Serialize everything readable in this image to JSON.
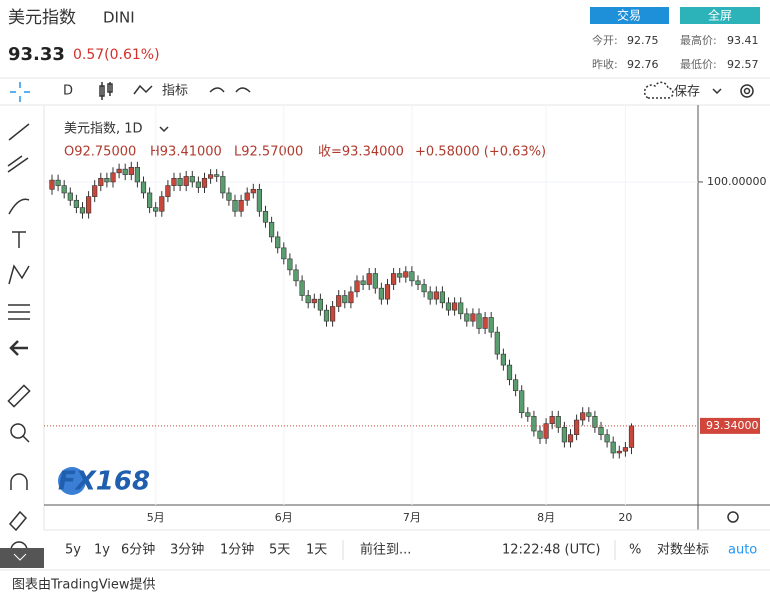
{
  "header": {
    "title": "美元指数",
    "symbol": "DINI",
    "price": "93.33",
    "change": "0.57(0.61%)",
    "buttons": [
      "交易",
      "全屏"
    ],
    "stats": [
      {
        "label": "今开:",
        "value": "92.75"
      },
      {
        "label": "最高价:",
        "value": "93.41"
      },
      {
        "label": "昨收:",
        "value": "92.76"
      },
      {
        "label": "最低价:",
        "value": "92.57"
      }
    ]
  },
  "toolbar": {
    "interval": "D",
    "indicators": "指标",
    "save": "保存"
  },
  "chart_data": {
    "type": "candlestick",
    "title": "美元指数, 1D",
    "ohlc_labels": [
      "O92.75000",
      "H93.41000",
      "L92.57000",
      "收=93.34000",
      "+0.58000 (+0.63%)"
    ],
    "up_color": "#c8473b",
    "down_color": "#5a9e6f",
    "open": [
      99.8,
      100.05,
      99.9,
      99.7,
      99.5,
      99.3,
      99.15,
      99.6,
      99.9,
      100.1,
      100.0,
      100.25,
      100.35,
      100.2,
      100.4,
      100.0,
      99.7,
      99.3,
      99.2,
      99.6,
      99.9,
      100.1,
      99.9,
      100.15,
      100.0,
      99.85,
      100.1,
      100.2,
      100.15,
      99.7,
      99.5,
      99.2,
      99.5,
      99.7,
      99.8,
      99.2,
      98.9,
      98.5,
      98.2,
      97.9,
      97.6,
      97.3,
      96.9,
      96.7,
      96.8,
      96.5,
      96.2,
      96.6,
      96.9,
      96.7,
      97.0,
      97.3,
      97.2,
      97.5,
      97.1,
      96.8,
      97.2,
      97.5,
      97.4,
      97.55,
      97.3,
      97.2,
      97.0,
      96.8,
      97.0,
      96.7,
      96.5,
      96.7,
      96.4,
      96.2,
      96.4,
      96.0,
      96.3,
      95.9,
      95.3,
      95.0,
      94.6,
      94.3,
      93.7,
      93.6,
      93.2,
      93.0,
      93.4,
      93.6,
      93.3,
      92.9,
      93.1,
      93.5,
      93.7,
      93.6,
      93.3,
      93.1,
      92.9,
      92.6,
      92.65,
      92.75
    ],
    "high": [
      100.2,
      100.2,
      100.05,
      99.85,
      99.65,
      99.45,
      99.75,
      100.05,
      100.25,
      100.25,
      100.4,
      100.5,
      100.5,
      100.55,
      100.55,
      100.15,
      99.85,
      99.45,
      99.75,
      100.05,
      100.25,
      100.25,
      100.3,
      100.3,
      100.15,
      100.25,
      100.35,
      100.35,
      100.3,
      99.85,
      99.65,
      99.65,
      99.85,
      99.95,
      99.95,
      99.35,
      99.05,
      98.65,
      98.35,
      98.05,
      97.75,
      97.45,
      97.05,
      96.95,
      96.95,
      96.65,
      96.75,
      97.05,
      97.05,
      97.15,
      97.45,
      97.45,
      97.65,
      97.65,
      97.25,
      97.35,
      97.65,
      97.65,
      97.7,
      97.7,
      97.45,
      97.35,
      97.15,
      97.15,
      97.15,
      96.85,
      96.85,
      96.85,
      96.55,
      96.55,
      96.55,
      96.45,
      96.45,
      96.05,
      95.45,
      95.15,
      94.75,
      94.45,
      93.85,
      93.75,
      93.35,
      93.55,
      93.75,
      93.75,
      93.45,
      93.25,
      93.65,
      93.85,
      93.85,
      93.75,
      93.45,
      93.25,
      93.05,
      92.8,
      92.9,
      93.41
    ],
    "low": [
      99.65,
      99.75,
      99.55,
      99.35,
      99.15,
      99.0,
      99.0,
      99.45,
      99.75,
      99.85,
      99.85,
      100.1,
      100.05,
      100.05,
      99.85,
      99.55,
      99.15,
      99.05,
      99.05,
      99.45,
      99.75,
      99.75,
      99.75,
      99.85,
      99.7,
      99.7,
      99.95,
      100.0,
      99.55,
      99.35,
      99.05,
      99.05,
      99.35,
      99.55,
      99.05,
      98.75,
      98.35,
      98.05,
      97.75,
      97.45,
      97.15,
      96.75,
      96.55,
      96.55,
      96.35,
      96.05,
      96.05,
      96.45,
      96.55,
      96.55,
      96.85,
      97.05,
      97.05,
      96.95,
      96.65,
      96.65,
      97.05,
      97.25,
      97.25,
      97.15,
      97.05,
      96.85,
      96.65,
      96.65,
      96.55,
      96.35,
      96.35,
      96.25,
      96.05,
      96.05,
      95.85,
      95.85,
      95.75,
      95.15,
      94.85,
      94.45,
      94.15,
      93.55,
      93.45,
      93.05,
      92.85,
      92.85,
      93.25,
      93.15,
      92.75,
      92.75,
      92.95,
      93.35,
      93.45,
      93.15,
      92.95,
      92.75,
      92.45,
      92.45,
      92.5,
      92.57
    ],
    "close": [
      100.05,
      99.9,
      99.7,
      99.5,
      99.3,
      99.15,
      99.6,
      99.9,
      100.1,
      100.0,
      100.25,
      100.35,
      100.2,
      100.4,
      100.0,
      99.7,
      99.3,
      99.2,
      99.6,
      99.9,
      100.1,
      99.9,
      100.15,
      100.0,
      99.85,
      100.1,
      100.2,
      100.15,
      99.7,
      99.5,
      99.2,
      99.5,
      99.7,
      99.8,
      99.2,
      98.9,
      98.5,
      98.2,
      97.9,
      97.6,
      97.3,
      96.9,
      96.7,
      96.8,
      96.5,
      96.2,
      96.6,
      96.9,
      96.7,
      97.0,
      97.3,
      97.2,
      97.5,
      97.1,
      96.8,
      97.2,
      97.5,
      97.4,
      97.55,
      97.3,
      97.2,
      97.0,
      96.8,
      97.0,
      96.7,
      96.5,
      96.7,
      96.4,
      96.2,
      96.4,
      96.0,
      96.3,
      95.9,
      95.3,
      95.0,
      94.6,
      94.3,
      93.7,
      93.6,
      93.2,
      93.0,
      93.4,
      93.6,
      93.3,
      92.9,
      93.1,
      93.5,
      93.7,
      93.6,
      93.3,
      93.1,
      92.9,
      92.6,
      92.65,
      92.75,
      93.34
    ],
    "ylim": [
      91.18,
      101.91
    ],
    "yticks": [
      {
        "value": 100,
        "label": "100.00000"
      }
    ],
    "last_price": {
      "value": 93.34,
      "label": "93.34000"
    },
    "xticks": [
      {
        "value": 17,
        "label": "5月"
      },
      {
        "value": 38,
        "label": "6月"
      },
      {
        "value": 59,
        "label": "7月"
      },
      {
        "value": 81,
        "label": "8月"
      },
      {
        "value": 94,
        "label": "20"
      }
    ],
    "grid": true
  },
  "bottom_bar": {
    "ranges": [
      "5y",
      "1y",
      "6分钟",
      "3分钟",
      "1分钟",
      "5天",
      "1天"
    ],
    "goto": "前往到...",
    "time": "12:22:48 (UTC)",
    "percent": "%",
    "log": "对数坐标",
    "auto": "auto"
  },
  "watermark": "FX168",
  "footer": "图表由TradingView提供"
}
